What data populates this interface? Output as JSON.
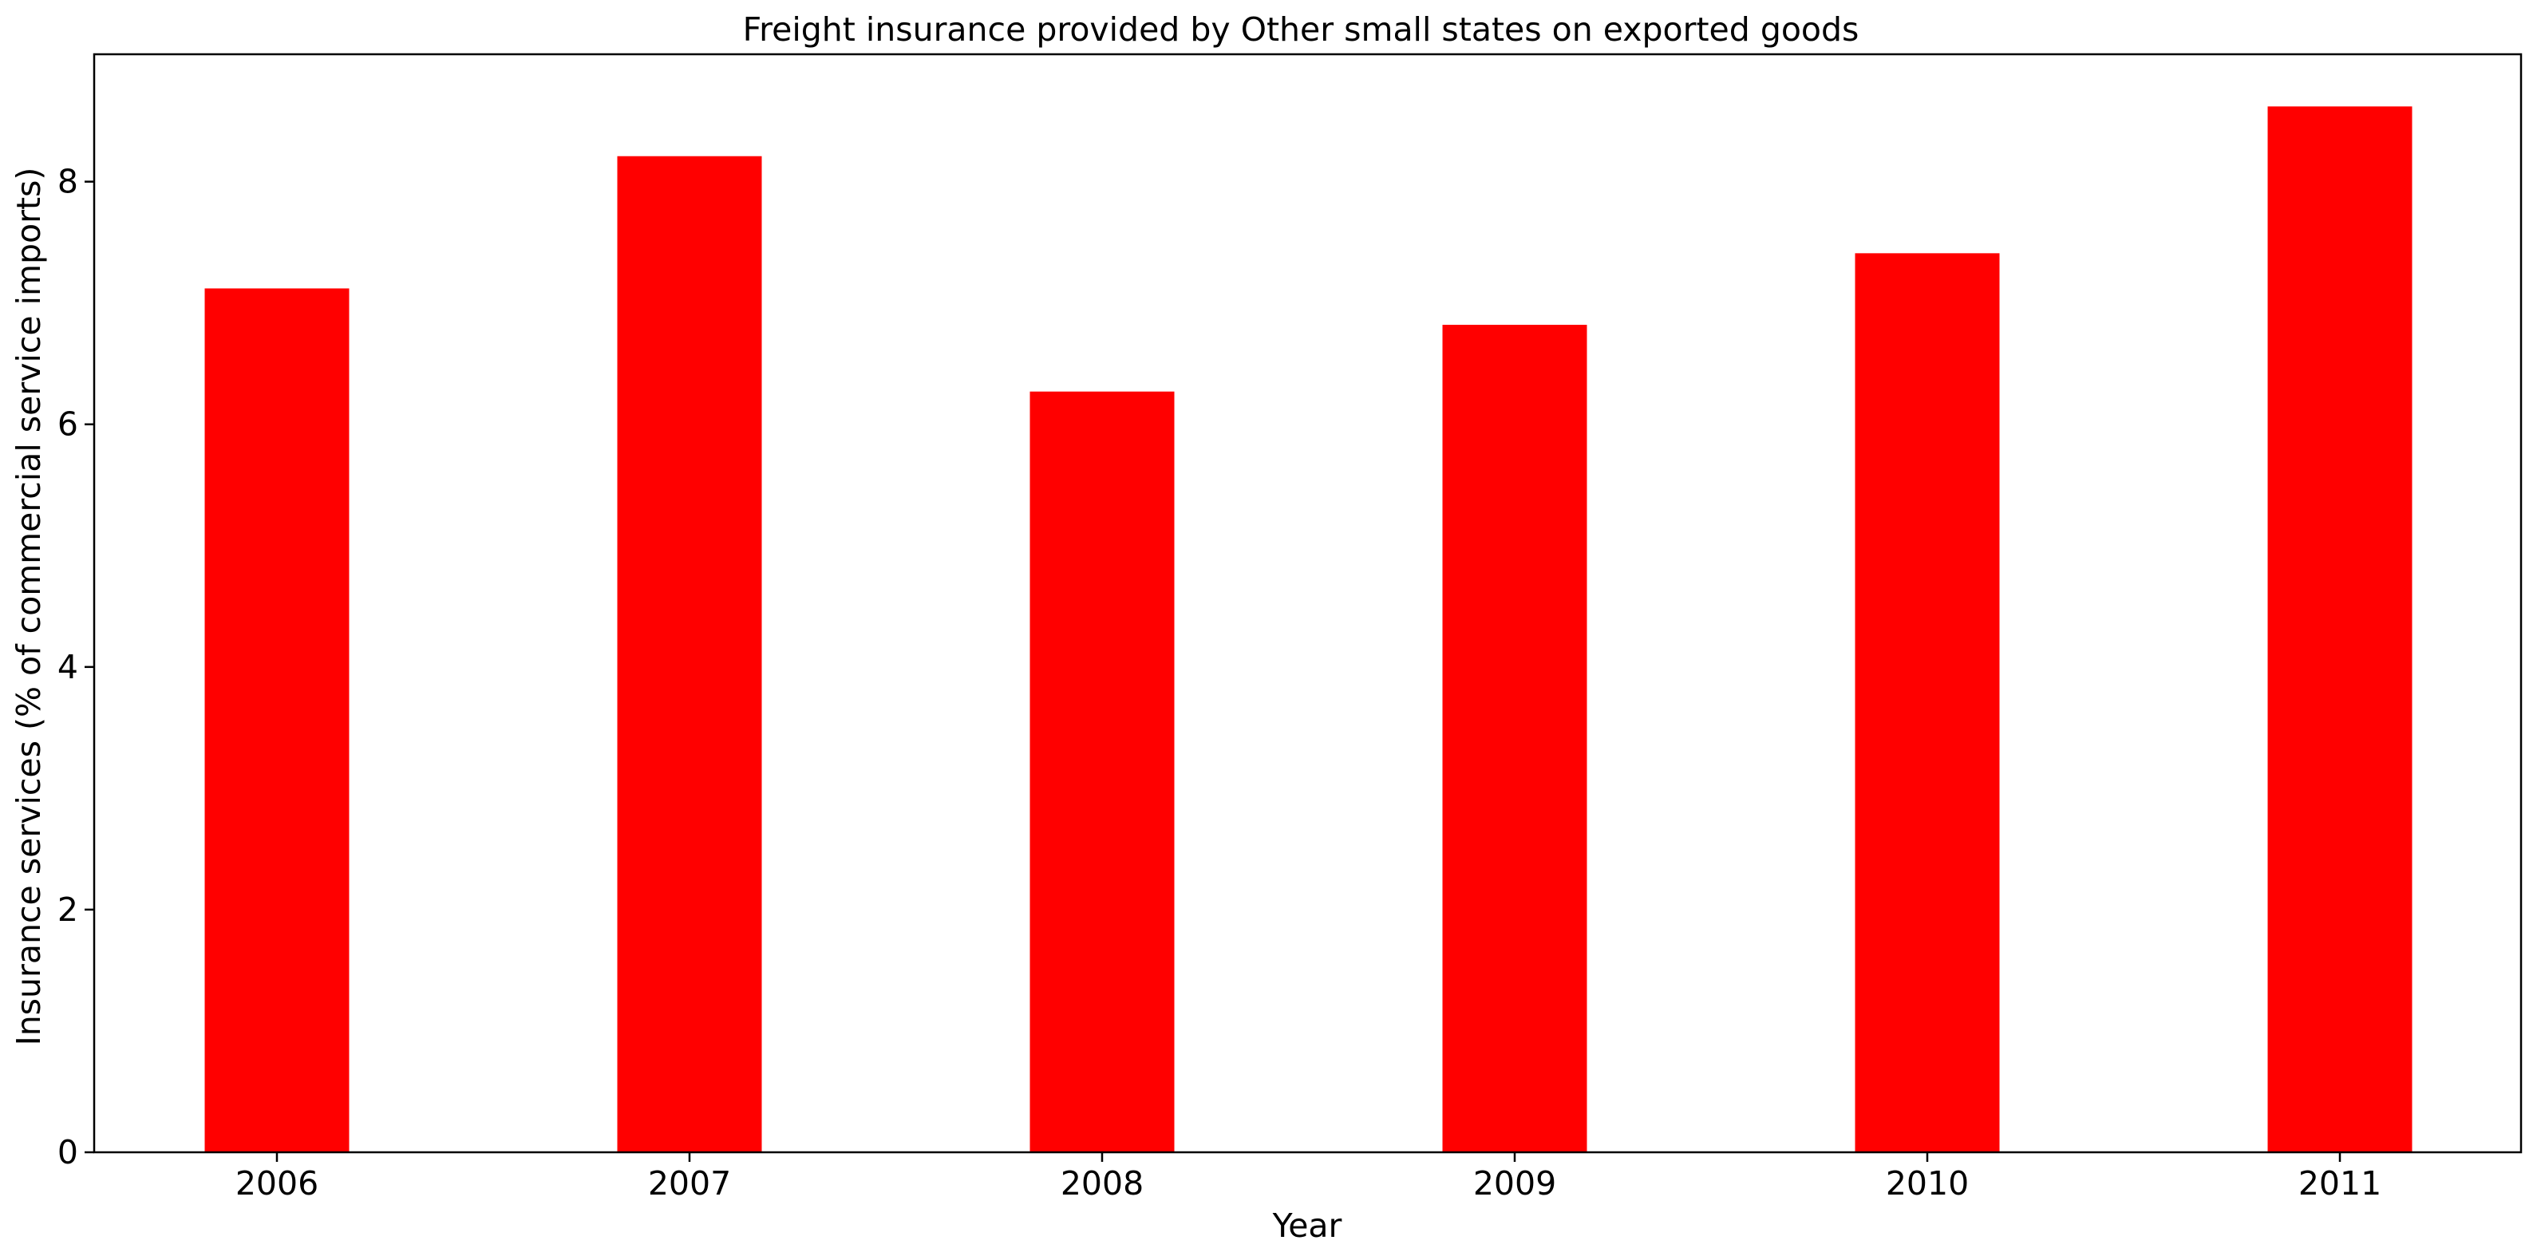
{
  "chart_data": {
    "type": "bar",
    "title": "Freight insurance provided by Other small states on exported goods",
    "xlabel": "Year",
    "ylabel": "Insurance services (% of commercial service imports)",
    "categories": [
      "2006",
      "2007",
      "2008",
      "2009",
      "2010",
      "2011"
    ],
    "values": [
      7.12,
      8.21,
      6.27,
      6.82,
      7.41,
      8.62
    ],
    "ylim": [
      0,
      9.05
    ],
    "yticks": [
      0,
      2,
      4,
      6,
      8
    ],
    "bar_color": "#ff0000",
    "grid": false,
    "legend": "none"
  }
}
